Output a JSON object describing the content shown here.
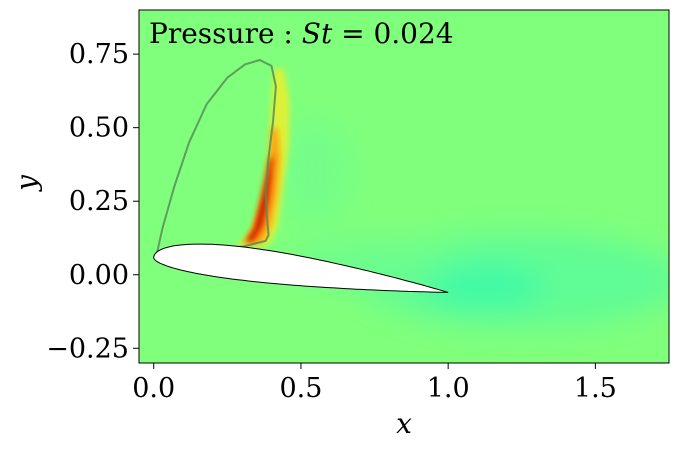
{
  "chart_data": {
    "type": "heatmap",
    "title": "Pressure : St = 0.024",
    "title_parts": {
      "prefix": "Pressure : ",
      "var": "St",
      "suffix": " = 0.024"
    },
    "xlabel": "x",
    "ylabel": "y",
    "xlim": [
      -0.05,
      1.75
    ],
    "ylim": [
      -0.3,
      0.9
    ],
    "xticks": [
      0.0,
      0.5,
      1.0,
      1.5
    ],
    "xtick_labels": [
      "0.0",
      "0.5",
      "1.0",
      "1.5"
    ],
    "yticks": [
      -0.25,
      0.0,
      0.25,
      0.5,
      0.75
    ],
    "ytick_labels": [
      "−0.25",
      "0.00",
      "0.25",
      "0.50",
      "0.75"
    ],
    "grid": false,
    "colormap": "jet",
    "background_color": "#80ff7c",
    "airfoil": {
      "leading_edge": [
        0.0,
        0.06
      ],
      "trailing_edge": [
        1.0,
        -0.06
      ],
      "fill": "#ffffff"
    },
    "vortex_loop": {
      "apex": [
        0.36,
        0.73
      ],
      "color": "#5a8c55"
    },
    "features": [
      {
        "name": "high-pressure-sheet",
        "x_range": [
          0.28,
          0.46
        ],
        "y_range": [
          0.09,
          0.72
        ],
        "peak_color": "#c81e00"
      },
      {
        "name": "low-pressure-wake",
        "x_range": [
          0.5,
          1.75
        ],
        "y_range": [
          -0.2,
          0.2
        ],
        "color": "#3cf8a8"
      }
    ]
  }
}
